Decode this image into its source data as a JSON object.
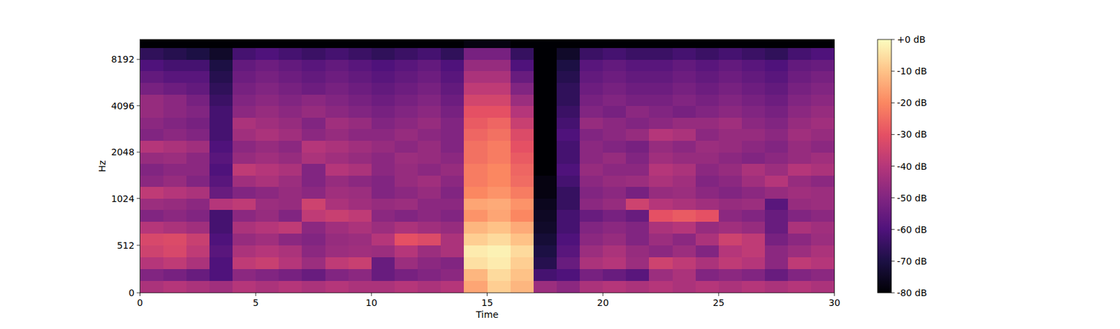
{
  "chart_data": {
    "type": "heatmap",
    "xlabel": "Time",
    "ylabel": "Hz",
    "xlim": [
      0,
      30
    ],
    "ylim": [
      0,
      11025
    ],
    "log": "y",
    "xticks": [
      0,
      5,
      10,
      15,
      20,
      25,
      30
    ],
    "yticks": [
      0,
      512,
      1024,
      2048,
      4096,
      8192
    ],
    "x_bins": [
      0,
      1,
      2,
      3,
      4,
      5,
      6,
      7,
      8,
      9,
      10,
      11,
      12,
      13,
      14,
      15,
      16,
      17,
      18,
      19,
      20,
      21,
      22,
      23,
      24,
      25,
      26,
      27,
      28,
      29,
      30
    ],
    "y_bins": [
      0,
      128,
      256,
      384,
      512,
      640,
      768,
      896,
      1024,
      1218,
      1448,
      1722,
      2048,
      2435,
      2896,
      3444,
      4096,
      4871,
      5793,
      6889,
      8192,
      9742,
      11025
    ],
    "values": [
      [
        -42,
        -40,
        -42,
        -44,
        -40,
        -42,
        -40,
        -42,
        -40,
        -42,
        -42,
        -40,
        -42,
        -40,
        -15,
        -8,
        -12,
        -45,
        -48,
        -42,
        -40,
        -42,
        -40,
        -42,
        -40,
        -42,
        -40,
        -42,
        -40,
        -42
      ],
      [
        -50,
        -52,
        -55,
        -60,
        -48,
        -50,
        -52,
        -55,
        -50,
        -48,
        -55,
        -52,
        -50,
        -48,
        -12,
        -6,
        -10,
        -62,
        -60,
        -52,
        -55,
        -58,
        -45,
        -42,
        -50,
        -48,
        -50,
        -55,
        -50,
        -48
      ],
      [
        -40,
        -38,
        -42,
        -60,
        -38,
        -36,
        -40,
        -45,
        -38,
        -36,
        -55,
        -45,
        -48,
        -50,
        -5,
        -3,
        -8,
        -68,
        -55,
        -42,
        -40,
        -45,
        -35,
        -38,
        -42,
        -38,
        -40,
        -48,
        -38,
        -40
      ],
      [
        -35,
        -33,
        -38,
        -58,
        -42,
        -40,
        -42,
        -48,
        -45,
        -44,
        -45,
        -40,
        -45,
        -42,
        -3,
        -2,
        -6,
        -70,
        -58,
        -45,
        -42,
        -46,
        -48,
        -45,
        -50,
        -40,
        -38,
        -48,
        -45,
        -42
      ],
      [
        -33,
        -32,
        -36,
        -60,
        -46,
        -44,
        -48,
        -50,
        -46,
        -45,
        -40,
        -30,
        -32,
        -42,
        -8,
        -6,
        -10,
        -72,
        -60,
        -48,
        -46,
        -50,
        -45,
        -48,
        -42,
        -35,
        -38,
        -52,
        -48,
        -45
      ],
      [
        -40,
        -42,
        -44,
        -62,
        -42,
        -40,
        -38,
        -48,
        -44,
        -42,
        -45,
        -42,
        -44,
        -46,
        -12,
        -10,
        -14,
        -74,
        -62,
        -50,
        -48,
        -50,
        -42,
        -40,
        -46,
        -44,
        -46,
        -55,
        -42,
        -44
      ],
      [
        -50,
        -48,
        -50,
        -62,
        -48,
        -46,
        -50,
        -38,
        -36,
        -38,
        -48,
        -50,
        -48,
        -50,
        -18,
        -15,
        -20,
        -75,
        -62,
        -55,
        -52,
        -55,
        -30,
        -28,
        -30,
        -48,
        -50,
        -55,
        -50,
        -48
      ],
      [
        -45,
        -46,
        -48,
        -40,
        -38,
        -45,
        -46,
        -35,
        -42,
        -44,
        -46,
        -45,
        -48,
        -48,
        -15,
        -14,
        -18,
        -76,
        -65,
        -48,
        -46,
        -35,
        -40,
        -42,
        -44,
        -46,
        -45,
        -58,
        -46,
        -45
      ],
      [
        -38,
        -40,
        -42,
        -55,
        -50,
        -48,
        -46,
        -48,
        -44,
        -45,
        -50,
        -48,
        -46,
        -50,
        -20,
        -18,
        -22,
        -78,
        -65,
        -50,
        -48,
        -52,
        -46,
        -45,
        -48,
        -50,
        -48,
        -46,
        -44,
        -45
      ],
      [
        -48,
        -46,
        -50,
        -58,
        -44,
        -42,
        -45,
        -50,
        -46,
        -48,
        -50,
        -46,
        -44,
        -48,
        -22,
        -20,
        -25,
        -78,
        -62,
        -48,
        -46,
        -45,
        -42,
        -44,
        -50,
        -48,
        -44,
        -40,
        -46,
        -48
      ],
      [
        -50,
        -48,
        -48,
        -60,
        -38,
        -40,
        -42,
        -50,
        -40,
        -42,
        -48,
        -46,
        -48,
        -46,
        -22,
        -20,
        -26,
        -80,
        -60,
        -46,
        -48,
        -48,
        -40,
        -42,
        -48,
        -46,
        -42,
        -45,
        -40,
        -42
      ],
      [
        -46,
        -45,
        -48,
        -58,
        -46,
        -44,
        -46,
        -42,
        -44,
        -46,
        -48,
        -45,
        -46,
        -48,
        -24,
        -22,
        -28,
        -80,
        -62,
        -48,
        -46,
        -50,
        -44,
        -46,
        -46,
        -48,
        -50,
        -48,
        -46,
        -44
      ],
      [
        -40,
        -42,
        -44,
        -60,
        -48,
        -46,
        -48,
        -40,
        -42,
        -44,
        -46,
        -48,
        -46,
        -50,
        -24,
        -22,
        -30,
        -80,
        -62,
        -48,
        -50,
        -52,
        -46,
        -48,
        -45,
        -46,
        -48,
        -50,
        -46,
        -48
      ],
      [
        -50,
        -48,
        -50,
        -62,
        -44,
        -42,
        -44,
        -48,
        -46,
        -48,
        -48,
        -46,
        -48,
        -50,
        -26,
        -24,
        -32,
        -80,
        -60,
        -50,
        -48,
        -46,
        -40,
        -42,
        -48,
        -46,
        -46,
        -48,
        -44,
        -46
      ],
      [
        -48,
        -50,
        -52,
        -62,
        -42,
        -44,
        -46,
        -50,
        -44,
        -46,
        -50,
        -48,
        -46,
        -50,
        -28,
        -26,
        -36,
        -80,
        -62,
        -46,
        -48,
        -50,
        -48,
        -46,
        -46,
        -44,
        -48,
        -50,
        -46,
        -44
      ],
      [
        -46,
        -48,
        -50,
        -62,
        -48,
        -46,
        -48,
        -46,
        -48,
        -50,
        -52,
        -50,
        -48,
        -52,
        -30,
        -30,
        -40,
        -80,
        -64,
        -50,
        -52,
        -48,
        -50,
        -52,
        -50,
        -48,
        -50,
        -52,
        -48,
        -46
      ],
      [
        -46,
        -48,
        -52,
        -64,
        -50,
        -48,
        -50,
        -48,
        -50,
        -52,
        -54,
        -52,
        -50,
        -54,
        -34,
        -34,
        -45,
        -80,
        -66,
        -52,
        -50,
        -52,
        -52,
        -50,
        -52,
        -50,
        -52,
        -54,
        -50,
        -48
      ],
      [
        -52,
        -54,
        -56,
        -66,
        -52,
        -50,
        -52,
        -54,
        -52,
        -54,
        -56,
        -54,
        -52,
        -56,
        -38,
        -38,
        -50,
        -80,
        -66,
        -54,
        -52,
        -54,
        -54,
        -52,
        -54,
        -52,
        -54,
        -56,
        -52,
        -50
      ],
      [
        -56,
        -58,
        -58,
        -68,
        -54,
        -52,
        -54,
        -56,
        -54,
        -56,
        -58,
        -56,
        -54,
        -58,
        -42,
        -42,
        -55,
        -80,
        -68,
        -56,
        -54,
        -56,
        -56,
        -54,
        -56,
        -54,
        -56,
        -58,
        -54,
        -52
      ],
      [
        -60,
        -62,
        -62,
        -70,
        -56,
        -54,
        -56,
        -58,
        -56,
        -58,
        -60,
        -58,
        -56,
        -60,
        -46,
        -46,
        -60,
        -80,
        -70,
        -58,
        -56,
        -58,
        -58,
        -56,
        -58,
        -56,
        -58,
        -60,
        -56,
        -55
      ],
      [
        -66,
        -68,
        -70,
        -74,
        -62,
        -60,
        -62,
        -64,
        -62,
        -64,
        -66,
        -64,
        -62,
        -66,
        -52,
        -52,
        -65,
        -80,
        -74,
        -64,
        -62,
        -64,
        -64,
        -62,
        -64,
        -62,
        -64,
        -66,
        -62,
        -60
      ],
      [
        -80,
        -80,
        -80,
        -80,
        -80,
        -80,
        -80,
        -80,
        -80,
        -80,
        -80,
        -80,
        -80,
        -80,
        -78,
        -78,
        -80,
        -80,
        -80,
        -80,
        -80,
        -80,
        -80,
        -80,
        -80,
        -80,
        -80,
        -80,
        -80,
        -80
      ]
    ],
    "colorbar": {
      "range": [
        -80,
        0
      ],
      "ticks": [
        {
          "value": 0,
          "label": "+0 dB"
        },
        {
          "value": -10,
          "label": "-10 dB"
        },
        {
          "value": -20,
          "label": "-20 dB"
        },
        {
          "value": -30,
          "label": "-30 dB"
        },
        {
          "value": -40,
          "label": "-40 dB"
        },
        {
          "value": -50,
          "label": "-50 dB"
        },
        {
          "value": -60,
          "label": "-60 dB"
        },
        {
          "value": -70,
          "label": "-70 dB"
        },
        {
          "value": -80,
          "label": "-80 dB"
        }
      ]
    }
  }
}
